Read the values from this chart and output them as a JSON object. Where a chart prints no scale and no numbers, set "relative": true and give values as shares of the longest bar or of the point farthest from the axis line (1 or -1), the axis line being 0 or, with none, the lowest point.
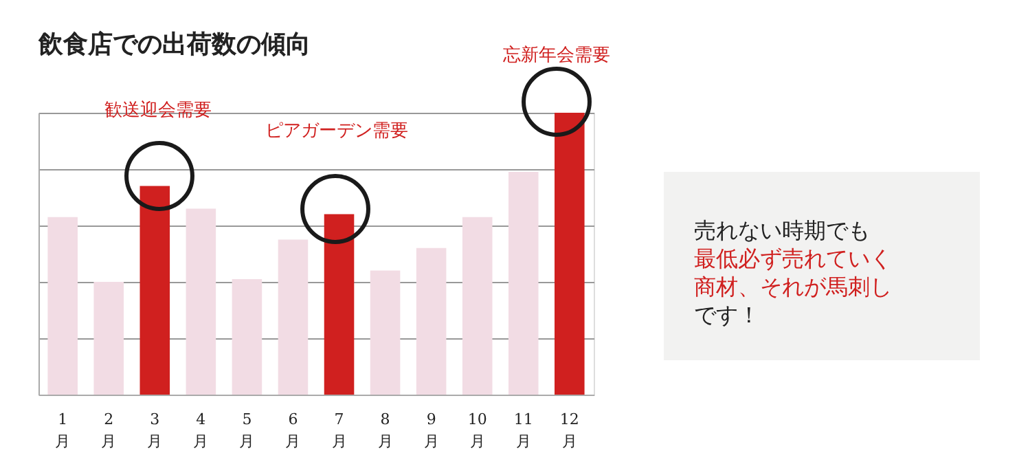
{
  "chart_data": {
    "type": "bar",
    "title": "飲食店での出荷数の傾向",
    "relative": true,
    "grid": "y",
    "categories": [
      "1月",
      "2月",
      "3月",
      "4月",
      "5月",
      "6月",
      "7月",
      "8月",
      "9月",
      "10月",
      "11月",
      "12月"
    ],
    "values": [
      0.63,
      0.4,
      0.74,
      0.66,
      0.41,
      0.55,
      0.64,
      0.44,
      0.52,
      0.63,
      0.79,
      1
    ],
    "colors": [
      "#f2dce4",
      "#f2dce4",
      "#d0201f",
      "#f2dce4",
      "#f2dce4",
      "#f2dce4",
      "#d0201f",
      "#f2dce4",
      "#f2dce4",
      "#f2dce4",
      "#f2dce4",
      "#d0201f"
    ],
    "annotations": [
      "歓送迎会需要",
      "ピアガーデン需要",
      "忘新年会需要",
      "売れない時期でも",
      "最低必ず売れていく",
      "商材、それが馬刺し",
      "です！"
    ]
  }
}
